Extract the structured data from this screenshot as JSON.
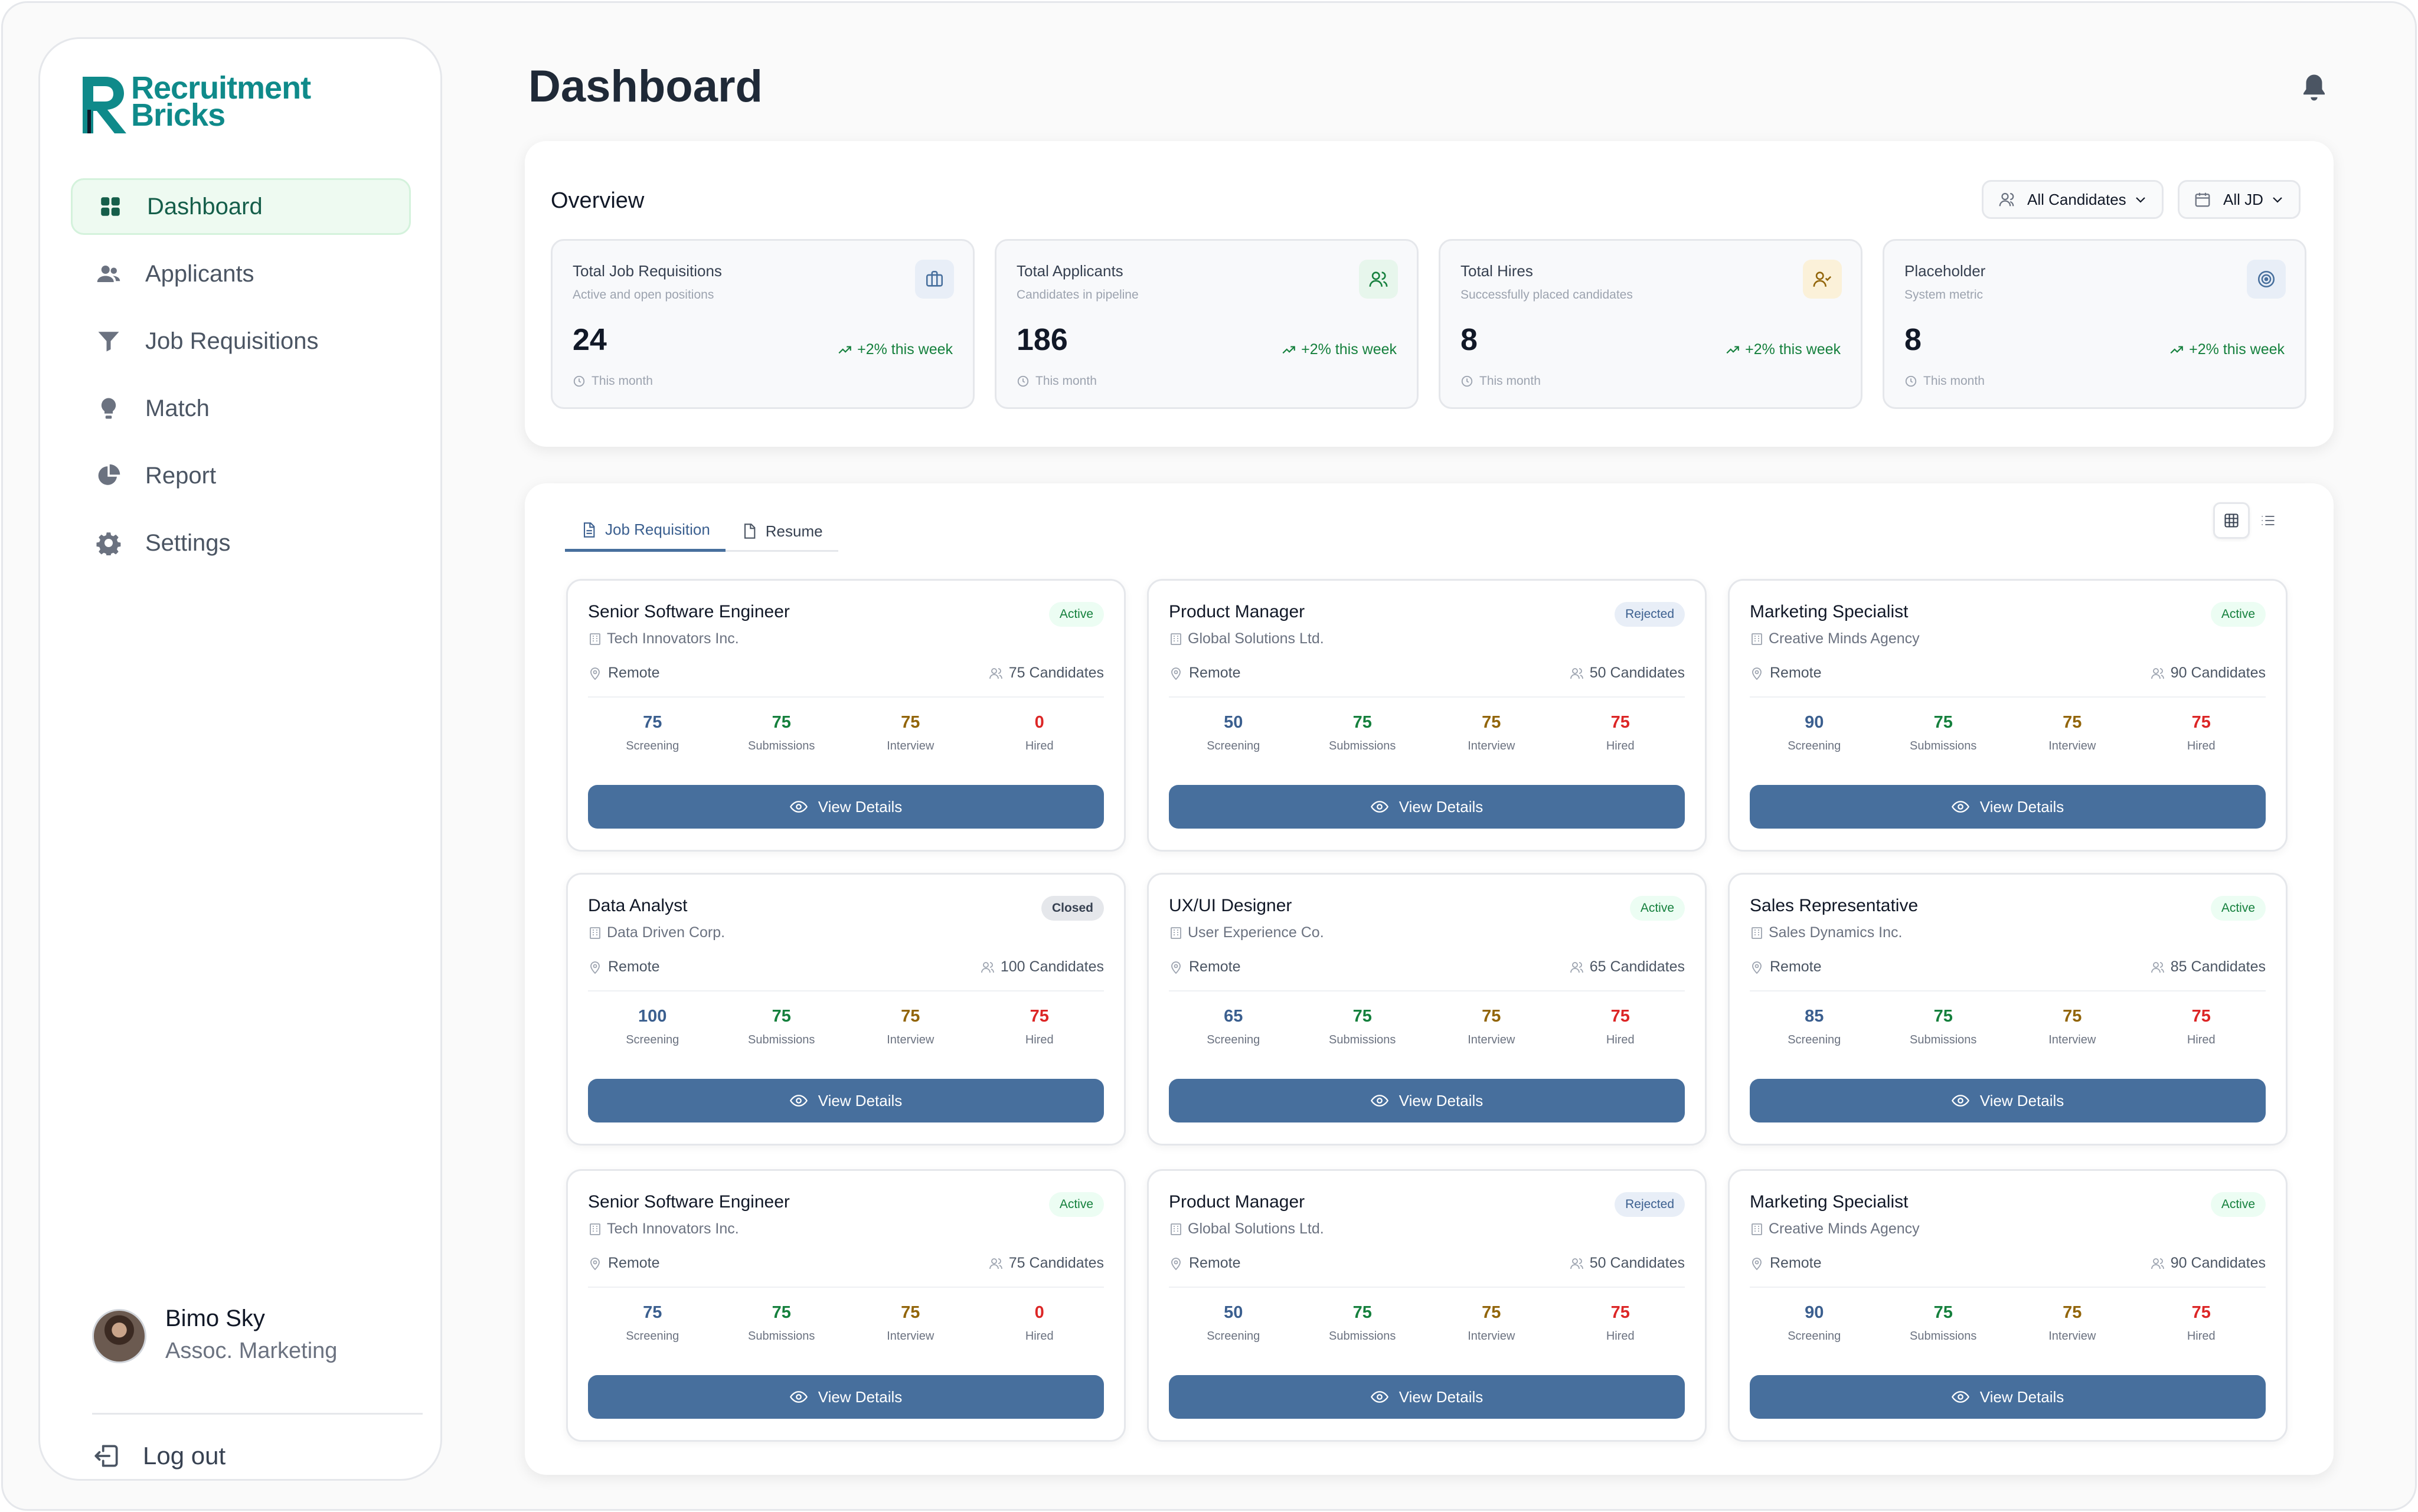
{
  "app": {
    "logo_line1": "Recruitment",
    "logo_line2": "Bricks",
    "brand_color": "#0f8a8a",
    "accent": "#476f9d"
  },
  "sidebar": {
    "items": [
      {
        "label": "Dashboard",
        "icon": "dashboard-grid-icon",
        "active": true
      },
      {
        "label": "Applicants",
        "icon": "users-icon",
        "active": false
      },
      {
        "label": "Job Requisitions",
        "icon": "funnel-icon",
        "active": false
      },
      {
        "label": "Match",
        "icon": "lightbulb-icon",
        "active": false
      },
      {
        "label": "Report",
        "icon": "pie-chart-icon",
        "active": false
      },
      {
        "label": "Settings",
        "icon": "gear-icon",
        "active": false
      }
    ],
    "user": {
      "name": "Bimo Sky",
      "role": "Assoc. Marketing"
    },
    "logout_label": "Log out"
  },
  "header": {
    "title": "Dashboard"
  },
  "overview": {
    "title": "Overview",
    "filters": {
      "candidates": "All Candidates",
      "jd": "All JD"
    },
    "stats": [
      {
        "label": "Total Job Requisitions",
        "sub": "Active and open positions",
        "value": "24",
        "trend": "+2% this week",
        "footer": "This month",
        "icon": "briefcase-icon"
      },
      {
        "label": "Total Applicants",
        "sub": "Candidates in pipeline",
        "value": "186",
        "trend": "+2% this week",
        "footer": "This month",
        "icon": "users-icon"
      },
      {
        "label": "Total Hires",
        "sub": "Successfully placed candidates",
        "value": "8",
        "trend": "+2% this week",
        "footer": "This month",
        "icon": "user-check-icon"
      },
      {
        "label": "Placeholder",
        "sub": "System metric",
        "value": "8",
        "trend": "+2% this week",
        "footer": "This month",
        "icon": "target-icon"
      }
    ]
  },
  "jobs": {
    "tabs": [
      {
        "label": "Job Requisition",
        "active": true
      },
      {
        "label": "Resume",
        "active": false
      }
    ],
    "metric_labels": {
      "screening": "Screening",
      "submissions": "Submissions",
      "interview": "Interview",
      "hired": "Hired"
    },
    "button_label": "View Details",
    "cards": [
      {
        "title": "Senior Software Engineer",
        "company": "Tech Innovators Inc.",
        "status": "Active",
        "status_class": "active",
        "location": "Remote",
        "candidates": "75 Candidates",
        "screening": "75",
        "submissions": "75",
        "interview": "75",
        "hired": "0"
      },
      {
        "title": "Product Manager",
        "company": "Global Solutions Ltd.",
        "status": "Rejected",
        "status_class": "rejected",
        "location": "Remote",
        "candidates": "50 Candidates",
        "screening": "50",
        "submissions": "75",
        "interview": "75",
        "hired": "75"
      },
      {
        "title": "Marketing Specialist",
        "company": "Creative Minds Agency",
        "status": "Active",
        "status_class": "active",
        "location": "Remote",
        "candidates": "90 Candidates",
        "screening": "90",
        "submissions": "75",
        "interview": "75",
        "hired": "75"
      },
      {
        "title": "Data Analyst",
        "company": "Data Driven Corp.",
        "status": "Closed",
        "status_class": "closed",
        "location": "Remote",
        "candidates": "100 Candidates",
        "screening": "100",
        "submissions": "75",
        "interview": "75",
        "hired": "75"
      },
      {
        "title": "UX/UI Designer",
        "company": "User Experience Co.",
        "status": "Active",
        "status_class": "active",
        "location": "Remote",
        "candidates": "65 Candidates",
        "screening": "65",
        "submissions": "75",
        "interview": "75",
        "hired": "75"
      },
      {
        "title": "Sales Representative",
        "company": "Sales Dynamics Inc.",
        "status": "Active",
        "status_class": "active",
        "location": "Remote",
        "candidates": "85 Candidates",
        "screening": "85",
        "submissions": "75",
        "interview": "75",
        "hired": "75"
      },
      {
        "title": "Senior Software Engineer",
        "company": "Tech Innovators Inc.",
        "status": "Active",
        "status_class": "active",
        "location": "Remote",
        "candidates": "75 Candidates",
        "screening": "75",
        "submissions": "75",
        "interview": "75",
        "hired": "0"
      },
      {
        "title": "Product Manager",
        "company": "Global Solutions Ltd.",
        "status": "Rejected",
        "status_class": "rejected",
        "location": "Remote",
        "candidates": "50 Candidates",
        "screening": "50",
        "submissions": "75",
        "interview": "75",
        "hired": "75"
      },
      {
        "title": "Marketing Specialist",
        "company": "Creative Minds Agency",
        "status": "Active",
        "status_class": "active",
        "location": "Remote",
        "candidates": "90 Candidates",
        "screening": "90",
        "submissions": "75",
        "interview": "75",
        "hired": "75"
      }
    ]
  }
}
